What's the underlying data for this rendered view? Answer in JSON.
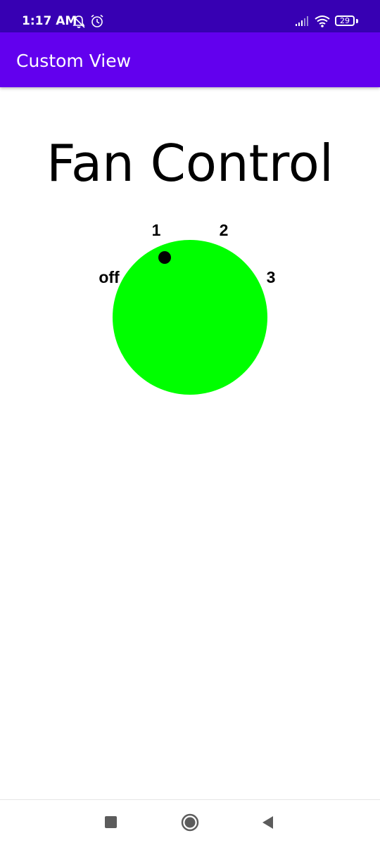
{
  "status_bar": {
    "time": "1:17 AM",
    "battery": "29",
    "icons": [
      "dnd-icon",
      "alarm-icon",
      "signal-icon",
      "wifi-icon",
      "battery-icon"
    ]
  },
  "app_bar": {
    "title": "Custom View"
  },
  "main": {
    "title": "Fan Control",
    "dial": {
      "labels": [
        "off",
        "1",
        "2",
        "3"
      ],
      "selected": "1",
      "knob_color": "#00ff00",
      "indicator_color": "#000000"
    }
  },
  "nav_bar": {
    "buttons": [
      "recents-button",
      "home-button",
      "back-button"
    ]
  },
  "colors": {
    "status_bar": "#3700b3",
    "app_bar": "#6200ee",
    "background": "#ffffff"
  }
}
